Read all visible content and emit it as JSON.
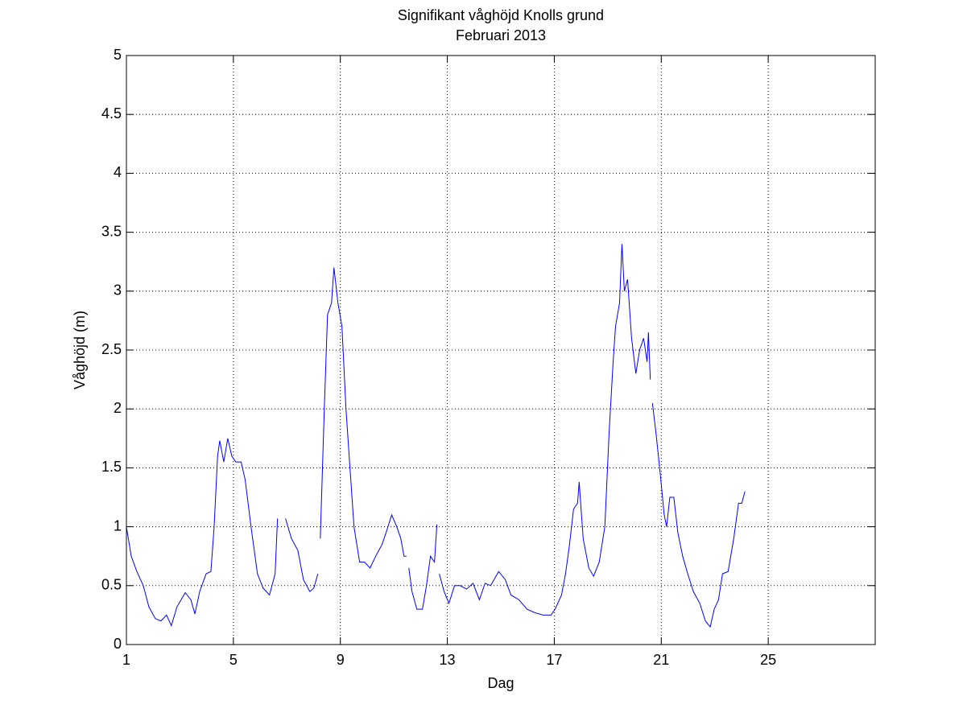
{
  "chart_data": {
    "type": "line",
    "title": "Signifikant våghöjd Knolls grund",
    "subtitle": "Februari 2013",
    "xlabel": "Dag",
    "ylabel": "Våghöjd (m)",
    "xlim": [
      1,
      29
    ],
    "xticks": [
      1,
      5,
      9,
      13,
      17,
      21,
      25
    ],
    "ylim": [
      0,
      5
    ],
    "yticks": [
      0,
      0.5,
      1,
      1.5,
      2,
      2.5,
      3,
      3.5,
      4,
      4.5,
      5
    ],
    "grid": true,
    "x": [
      1.0,
      1.18,
      1.39,
      1.63,
      1.84,
      2.08,
      2.29,
      2.5,
      2.68,
      2.89,
      3.2,
      3.41,
      3.56,
      3.74,
      3.98,
      4.16,
      4.28,
      4.41,
      4.49,
      4.64,
      4.79,
      4.94,
      5.09,
      5.29,
      5.44,
      5.66,
      5.9,
      6.11,
      6.35,
      6.56,
      6.65,
      6.8,
      6.95,
      7.17,
      7.41,
      7.62,
      7.86,
      8.01,
      8.16,
      8.2,
      8.25,
      8.4,
      8.52,
      8.67,
      8.76,
      8.91,
      9.06,
      9.21,
      9.36,
      9.51,
      9.72,
      9.9,
      10.11,
      10.32,
      10.56,
      10.71,
      10.92,
      11.11,
      11.26,
      11.38,
      11.47,
      11.5,
      11.56,
      11.68,
      11.86,
      12.07,
      12.22,
      12.37,
      12.52,
      12.61,
      12.65,
      12.7,
      12.88,
      13.06,
      13.27,
      13.48,
      13.72,
      13.96,
      14.2,
      14.41,
      14.62,
      14.92,
      15.17,
      15.38,
      15.68,
      15.98,
      16.28,
      16.58,
      16.88,
      17.03,
      17.27,
      17.42,
      17.57,
      17.72,
      17.87,
      17.93,
      18.08,
      18.29,
      18.47,
      18.68,
      18.89,
      19.05,
      19.2,
      19.29,
      19.44,
      19.53,
      19.62,
      19.74,
      19.89,
      20.05,
      20.19,
      20.34,
      20.47,
      20.52,
      20.59,
      20.63,
      20.67,
      20.8,
      20.94,
      21.11,
      21.2,
      21.32,
      21.47,
      21.62,
      21.8,
      21.99,
      22.2,
      22.44,
      22.65,
      22.83,
      22.98,
      23.14,
      23.29,
      23.5,
      23.71,
      23.89,
      24.01,
      24.13
    ],
    "series": [
      {
        "color": "#0000ff",
        "values": [
          1.0,
          0.75,
          0.62,
          0.5,
          0.32,
          0.22,
          0.2,
          0.25,
          0.16,
          0.32,
          0.44,
          0.38,
          0.26,
          0.45,
          0.6,
          0.62,
          1.0,
          1.6,
          1.73,
          1.55,
          1.75,
          1.6,
          1.55,
          1.55,
          1.4,
          1.0,
          0.6,
          0.48,
          0.42,
          0.6,
          1.07,
          null,
          1.07,
          0.9,
          0.8,
          0.55,
          0.45,
          0.48,
          0.6,
          null,
          0.9,
          2.0,
          2.8,
          2.9,
          3.2,
          2.9,
          2.7,
          2.0,
          1.5,
          1.0,
          0.7,
          0.7,
          0.65,
          0.75,
          0.85,
          0.95,
          1.1,
          1.0,
          0.9,
          0.75,
          0.75,
          null,
          0.65,
          0.45,
          0.3,
          0.3,
          0.5,
          0.75,
          0.7,
          1.02,
          null,
          0.6,
          0.45,
          0.35,
          0.5,
          0.5,
          0.47,
          0.52,
          0.38,
          0.52,
          0.5,
          0.62,
          0.55,
          0.42,
          0.38,
          0.3,
          0.27,
          0.25,
          0.25,
          0.3,
          0.42,
          0.6,
          0.85,
          1.15,
          1.2,
          1.38,
          0.9,
          0.65,
          0.58,
          0.7,
          1.0,
          1.8,
          2.4,
          2.7,
          2.9,
          3.4,
          3.0,
          3.1,
          2.6,
          2.3,
          2.5,
          2.6,
          2.4,
          2.65,
          2.25,
          null,
          2.05,
          1.8,
          1.5,
          1.1,
          1.0,
          1.25,
          1.25,
          0.95,
          0.75,
          0.6,
          0.45,
          0.35,
          0.2,
          0.15,
          0.3,
          0.38,
          0.6,
          0.62,
          0.9,
          1.2,
          1.2,
          1.3
        ]
      }
    ]
  }
}
